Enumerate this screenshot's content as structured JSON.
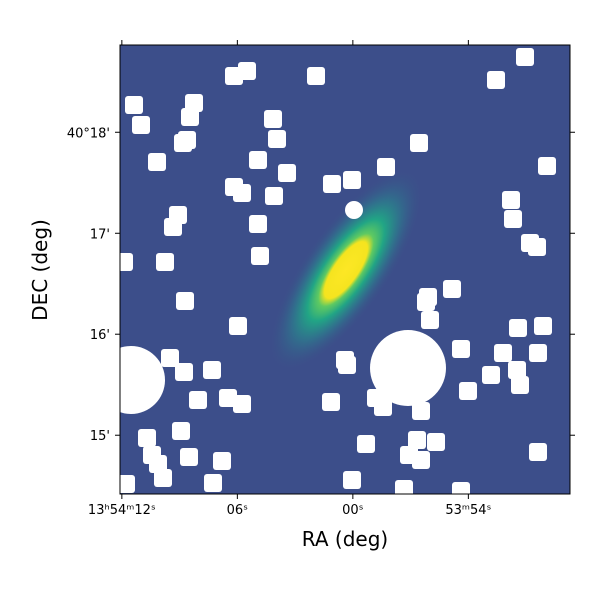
{
  "chart_data": {
    "type": "image",
    "xlabel": "RA (deg)",
    "ylabel": "DEC (deg)",
    "xlim": [
      208.5504,
      208.453
    ],
    "ylim": [
      40.2403,
      40.3144
    ],
    "xticks": [
      {
        "value": 208.55,
        "label": "13ʰ54ᵐ12ˢ"
      },
      {
        "value": 208.525,
        "label": "06ˢ"
      },
      {
        "value": 208.5,
        "label": "00ˢ"
      },
      {
        "value": 208.475,
        "label": "53ᵐ54ˢ"
      }
    ],
    "yticks": [
      {
        "value": 40.3,
        "label": "40°18'"
      },
      {
        "value": 40.28333,
        "label": "17'"
      },
      {
        "value": 40.26667,
        "label": "16'"
      },
      {
        "value": 40.25,
        "label": "15'"
      }
    ]
  }
}
